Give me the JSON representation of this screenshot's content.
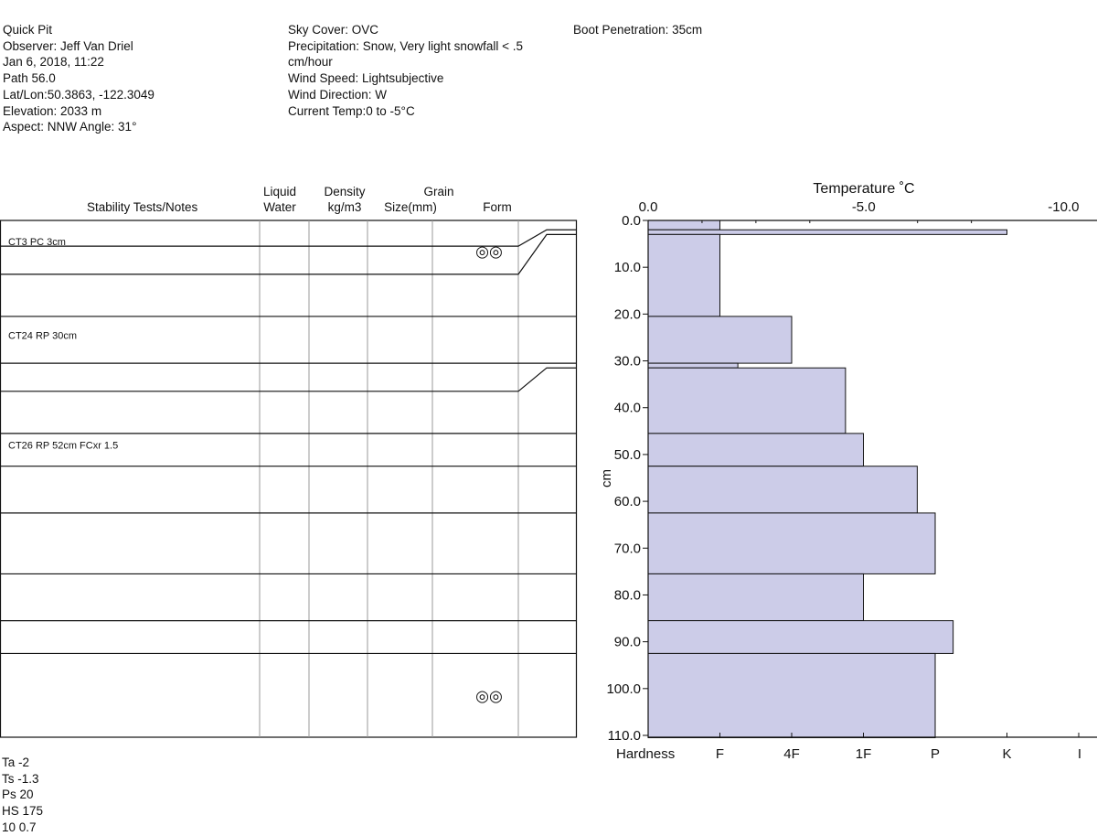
{
  "header": {
    "left": [
      "Quick Pit",
      "Observer: Jeff Van Driel",
      "Jan 6, 2018, 11:22",
      "Path 56.0",
      "Lat/Lon:50.3863, -122.3049",
      "Elevation: 2033 m",
      "Aspect: NNW Angle: 31°"
    ],
    "middle": [
      "Sky Cover: OVC",
      "Precipitation: Snow, Very light snowfall < .5",
      "cm/hour",
      "Wind Speed: Lightsubjective",
      "Wind Direction: W",
      "Current Temp:0 to -5°C"
    ],
    "right": [
      "Boot Penetration: 35cm"
    ]
  },
  "table": {
    "headers": {
      "stability": "Stability Tests/Notes",
      "liquid": "Liquid",
      "water": "Water",
      "density": "Density",
      "density_unit": "kg/m3",
      "grain": "Grain",
      "size": "Size(mm)",
      "form": "Form"
    },
    "notes": [
      {
        "text": "CT3 PC 3cm",
        "depth": 4.5
      },
      {
        "text": "CT24 RP 30cm",
        "depth": 24.5
      },
      {
        "text": "CT26 RP 52cm FCxr 1.5",
        "depth": 48.0
      }
    ],
    "form_symbols": [
      {
        "symbol": "◎◎",
        "name": "rounded-grains",
        "depth": 6.5
      },
      {
        "symbol": "◎◎",
        "name": "rounded-grains",
        "depth": 101.5
      }
    ]
  },
  "chart_data": {
    "type": "bar",
    "orientation": "horizontal",
    "title": "Temperature ˚C",
    "ylabel": "cm",
    "ylim": [
      0,
      110
    ],
    "y_ticks": [
      "0.0",
      "10.0",
      "20.0",
      "30.0",
      "40.0",
      "50.0",
      "60.0",
      "70.0",
      "80.0",
      "90.0",
      "100.0",
      "110.0"
    ],
    "temperature_ticks": [
      "0.0",
      "-5.0",
      "-10.0"
    ],
    "hardness_label": "Hardness",
    "hardness_ticks": [
      "F",
      "4F",
      "1F",
      "P",
      "K",
      "I"
    ],
    "hardness_scale": {
      "F": 1,
      "4F": 2,
      "1F": 3,
      "P": 4,
      "K": 5,
      "I": 6
    },
    "bar_color": "#cccce8",
    "layers": [
      {
        "top": 0,
        "bottom": 2,
        "hardness": 1
      },
      {
        "top": 2,
        "bottom": 3,
        "hardness": 5
      },
      {
        "top": 3,
        "bottom": 20.5,
        "hardness": 1
      },
      {
        "top": 20.5,
        "bottom": 30.5,
        "hardness": 2
      },
      {
        "top": 30.5,
        "bottom": 31.5,
        "hardness": 1.25
      },
      {
        "top": 31.5,
        "bottom": 45.5,
        "hardness": 2.75
      },
      {
        "top": 45.5,
        "bottom": 52.5,
        "hardness": 3
      },
      {
        "top": 52.5,
        "bottom": 62.5,
        "hardness": 3.75
      },
      {
        "top": 62.5,
        "bottom": 75.5,
        "hardness": 4
      },
      {
        "top": 75.5,
        "bottom": 85.5,
        "hardness": 3
      },
      {
        "top": 85.5,
        "bottom": 92.5,
        "hardness": 4.25
      },
      {
        "top": 92.5,
        "bottom": 110.5,
        "hardness": 4
      }
    ]
  },
  "footer": [
    "Ta -2",
    "Ts -1.3",
    "Ps 20",
    "HS 175",
    "10 0.7"
  ]
}
